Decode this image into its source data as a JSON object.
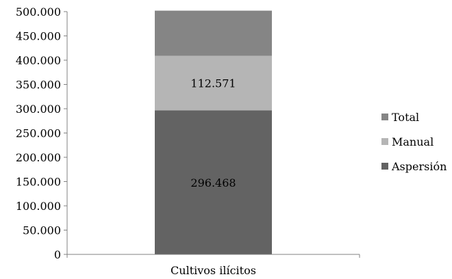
{
  "chart_data": {
    "type": "bar",
    "stacked": true,
    "categories": [
      "Cultivos ilícitos"
    ],
    "series": [
      {
        "name": "Aspersión",
        "values": [
          296468
        ],
        "color": "#636363",
        "data_label": "296.468"
      },
      {
        "name": "Manual",
        "values": [
          112571
        ],
        "color": "#b5b5b5",
        "data_label": "112.571"
      },
      {
        "name": "Total",
        "values": [
          92961
        ],
        "color": "#858585",
        "data_label": ""
      }
    ],
    "legend_order": [
      "Total",
      "Manual",
      "Aspersión"
    ],
    "legend_placement": "right",
    "ylim": [
      0,
      500000
    ],
    "yticks": [
      {
        "value": 0,
        "label": "0"
      },
      {
        "value": 50000,
        "label": "50.000"
      },
      {
        "value": 100000,
        "label": "100.000"
      },
      {
        "value": 150000,
        "label": "150.000"
      },
      {
        "value": 200000,
        "label": "200.000"
      },
      {
        "value": 250000,
        "label": "250.000"
      },
      {
        "value": 300000,
        "label": "300.000"
      },
      {
        "value": 350000,
        "label": "350.000"
      },
      {
        "value": 400000,
        "label": "400.000"
      },
      {
        "value": 450000,
        "label": "450.000"
      },
      {
        "value": 500000,
        "label": "500.000"
      }
    ],
    "grid": false
  }
}
